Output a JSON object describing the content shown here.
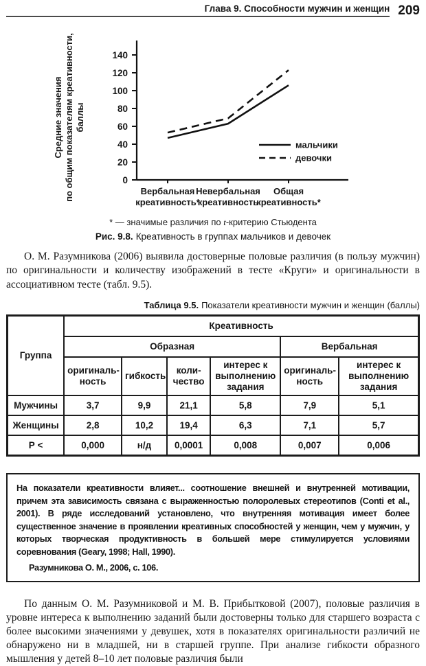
{
  "header": {
    "chapter_title": "Глава 9. Способности мужчин и женщин",
    "page_number": "209"
  },
  "chart_data": {
    "type": "line",
    "title": "",
    "categories": [
      "Вербальная креативность*",
      "Невербальная креативность",
      "Общая креативность*"
    ],
    "series": [
      {
        "name": "мальчики",
        "line_style": "solid",
        "values": [
          47,
          63,
          106
        ]
      },
      {
        "name": "девочки",
        "line_style": "dashed",
        "values": [
          53,
          69,
          123
        ]
      }
    ],
    "xlabel": "",
    "ylabel": "Средние значения по общим показателям креативности, баллы",
    "ylabel_lines": [
      "Средние значения",
      "по общим показателям креативности,",
      "баллы"
    ],
    "ylim": [
      0,
      140
    ],
    "ytick_step": 20,
    "yticks": [
      0,
      20,
      40,
      60,
      80,
      100,
      120,
      140
    ],
    "grid": false,
    "legend_position": "inside-right",
    "line_color": "#111111"
  },
  "figure": {
    "note_prefix": "* — значимые различия по ",
    "note_italic": "t",
    "note_suffix": "-критерию Стьюдента",
    "caption_label": "Рис. 9.8.",
    "caption_text": "Креативность в группах мальчиков и девочек"
  },
  "paragraphs": {
    "p1": "О. М. Разумникова (2006) выявила достоверные половые различия (в пользу мужчин) по оригинальности и количеству изображений в тесте «Круги» и оригинальности в ассоциативном тесте (табл. 9.5).",
    "p2": "По данным О. М. Разумниковой и М. В. Прибытковой (2007), половые различия в уровне интереса к выполнению заданий были достоверны только для старшего возраста с более высокими значениями у девушек, хотя в показателях оригинальности различий не обнаружено ни в младшей, ни в старшей группе. При анализе гибкости образного мышления у детей 8–10 лет половые различия были"
  },
  "table": {
    "caption_label": "Таблица 9.5.",
    "caption_text": "Показатели креативности мужчин и женщин (баллы)",
    "col_group": "Группа",
    "top_header": "Креативность",
    "group_headers": [
      "Образная",
      "Вербальная"
    ],
    "sub_headers": [
      "оригиналь-ность",
      "гибкость",
      "коли-чество",
      "интерес к выполнению задания",
      "оригиналь-ность",
      "интерес к выполнению задания"
    ],
    "rows": [
      {
        "label": "Мужчины",
        "values": [
          "3,7",
          "9,9",
          "21,1",
          "5,8",
          "7,9",
          "5,1"
        ]
      },
      {
        "label": "Женщины",
        "values": [
          "2,8",
          "10,2",
          "19,4",
          "6,3",
          "7,1",
          "5,7"
        ]
      },
      {
        "label": "Р <",
        "values": [
          "0,000",
          "н/д",
          "0,0001",
          "0,008",
          "0,007",
          "0,006"
        ]
      }
    ]
  },
  "quote": {
    "text": "На показатели креативности влияет... соотношение внешней и внутренней мотивации, причем эта зависимость связана с выраженностью полоролевых стереотипов (Conti et al., 2001). В ряде исследований установлено, что внутренняя мотивация имеет более существенное значение в проявлении креативных способностей у женщин, чем у мужчин, у которых творческая продуктивность в большей мере стимулируется условиями соревнования (Geary, 1998; Hall, 1990).",
    "attribution": "Разумникова О. М., 2006, с. 106."
  }
}
